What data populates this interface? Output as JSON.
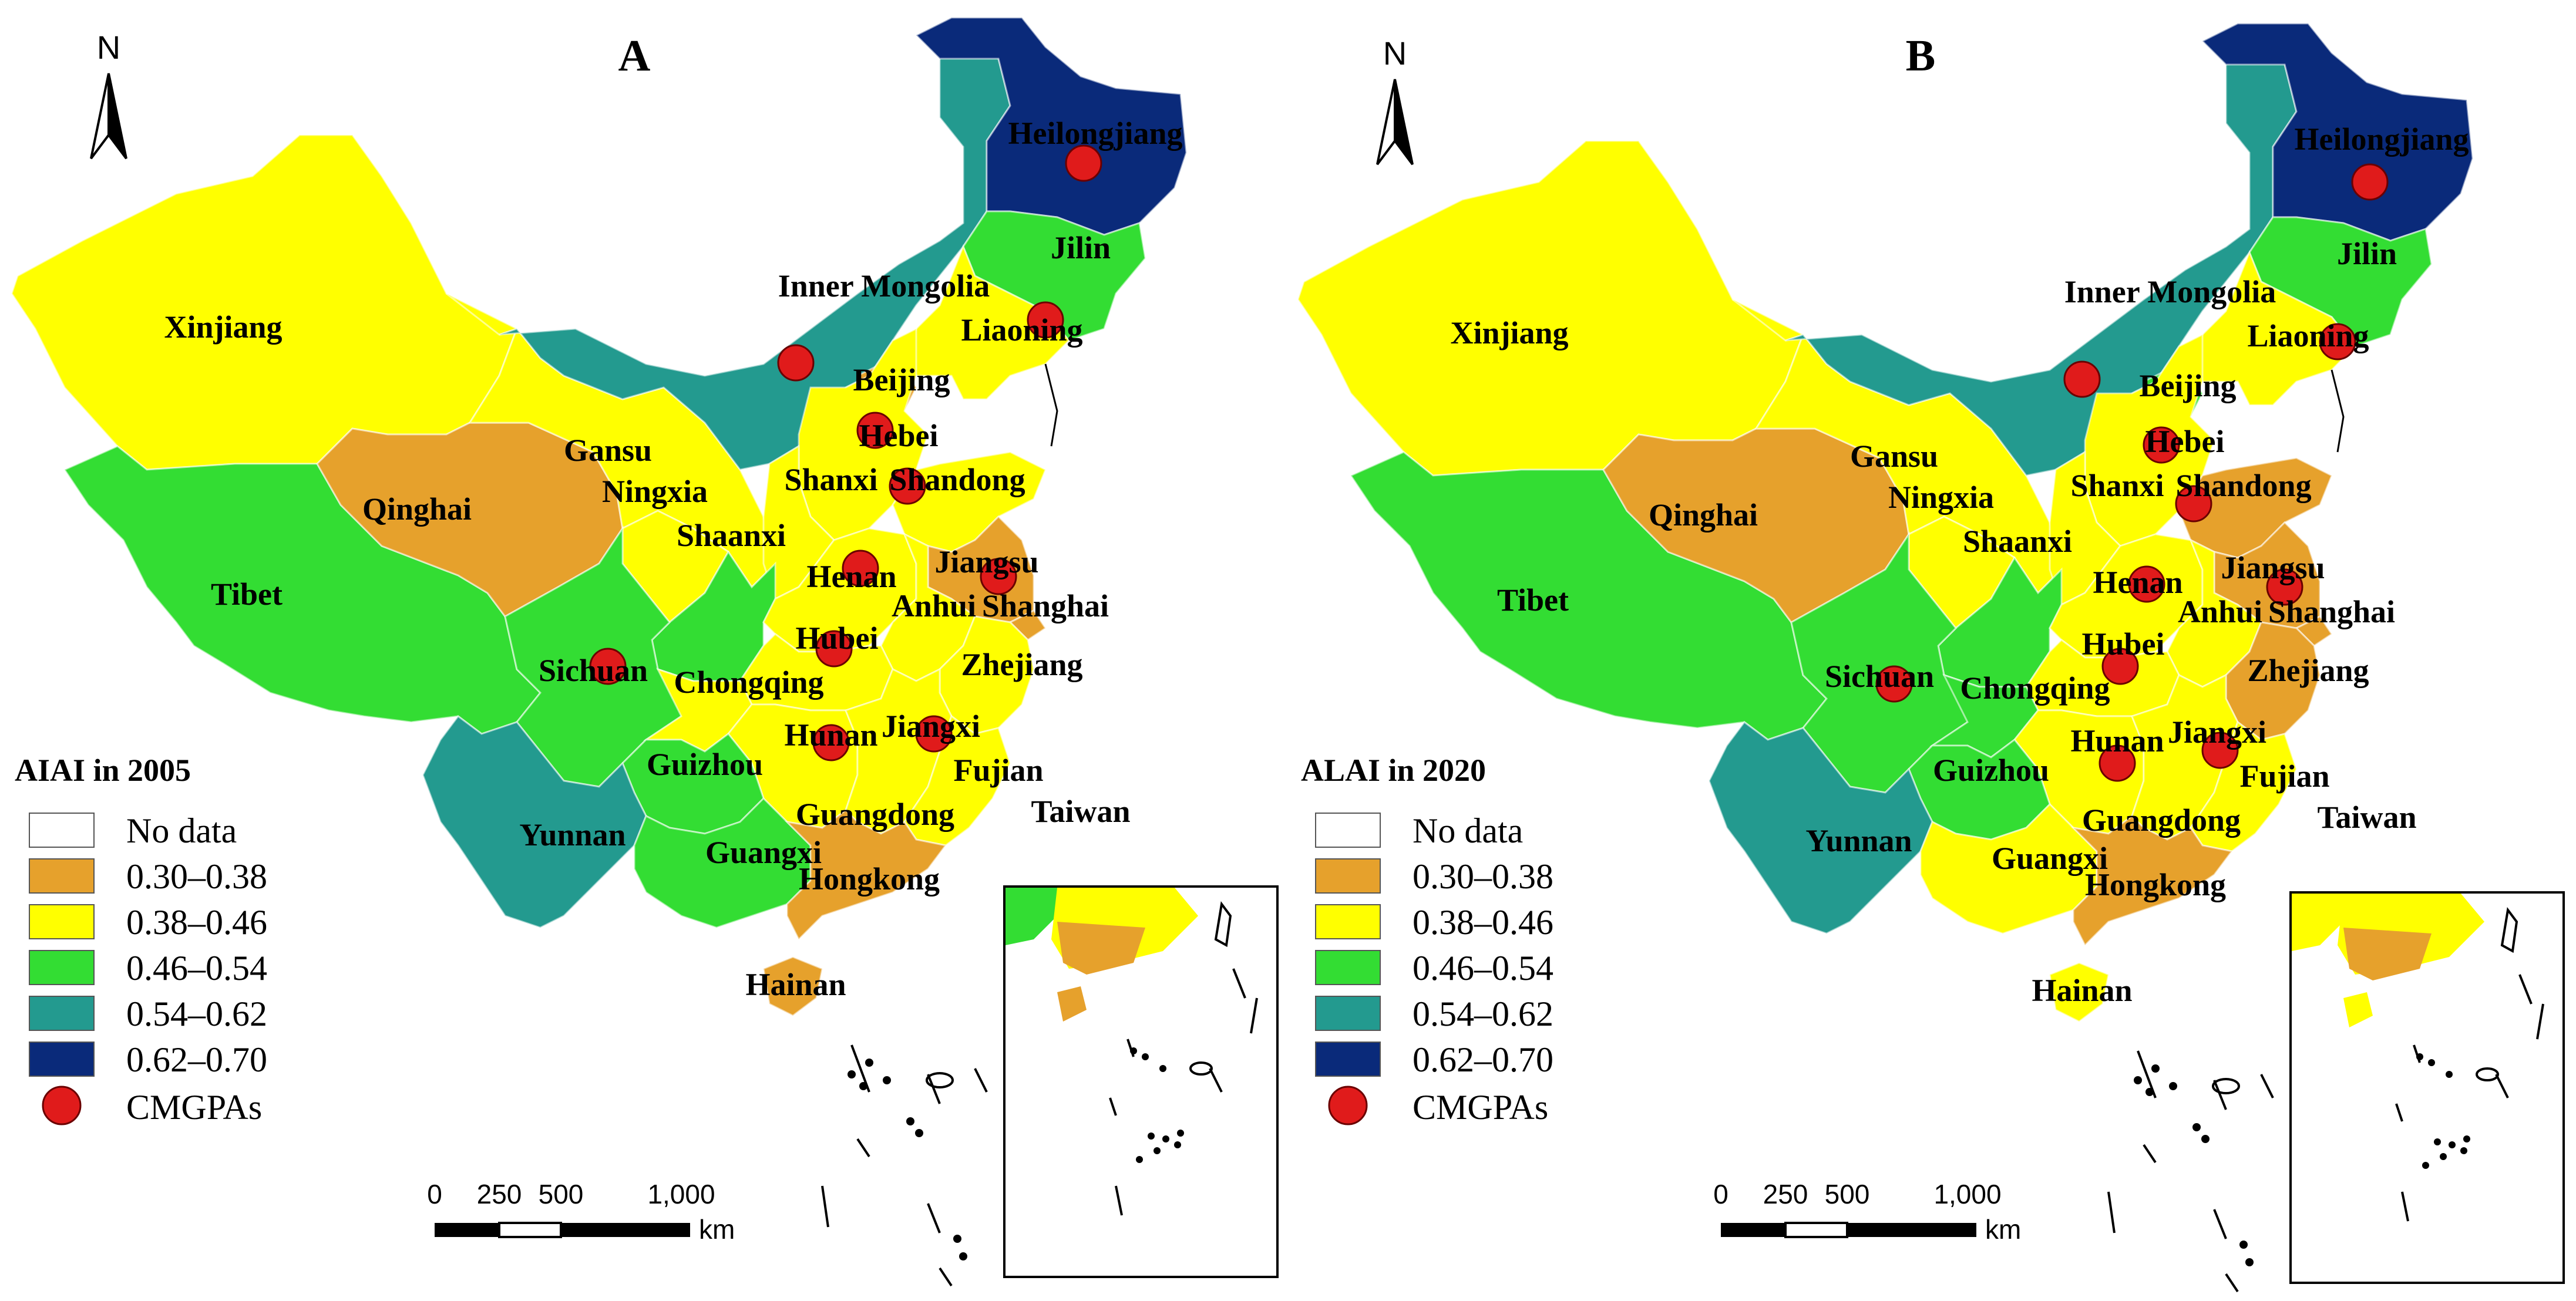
{
  "colors": {
    "no_data": "#ffffff",
    "c1": "#e6a12c",
    "c2": "#ffff00",
    "c3": "#33dd33",
    "c4": "#239a8f",
    "c5": "#0a2a7a",
    "marker": "#e01b1b"
  },
  "panels": [
    {
      "letter": "A",
      "legend_title": "AIAI in 2005",
      "legend": {
        "no_data": "No data",
        "c1": "0.30–0.38",
        "c2": "0.38–0.46",
        "c3": "0.46–0.54",
        "c4": "0.54–0.62",
        "c5": "0.62–0.70",
        "marker": "CMGPAs"
      },
      "north": "N",
      "scale": {
        "t0": "0",
        "t1": "250",
        "t2": "500",
        "t3": "1,000",
        "unit": "km"
      },
      "regions": {
        "xinjiang": "c2",
        "tibet": "c3",
        "qinghai": "c1",
        "gansu": "c2",
        "inner_mongolia": "c4",
        "heilongjiang": "c5",
        "jilin": "c3",
        "liaoning": "c2",
        "beijing": "c1",
        "hebei": "c2",
        "shandong": "c2",
        "shanxi": "c2",
        "ningxia": "c2",
        "shaanxi": "c3",
        "henan": "c2",
        "jiangsu": "c1",
        "anhui": "c2",
        "shanghai": "c1",
        "hubei": "c2",
        "zhejiang": "c2",
        "sichuan": "c3",
        "chongqing": "c2",
        "hunan": "c2",
        "jiangxi": "c2",
        "fujian": "c2",
        "guizhou": "c3",
        "yunnan": "c4",
        "guangxi": "c3",
        "guangdong": "c1",
        "hainan": "c1",
        "taiwan": "no_data"
      },
      "labels": {
        "xinjiang": "Xinjiang",
        "tibet": "Tibet",
        "qinghai": "Qinghai",
        "gansu": "Gansu",
        "inner_mongolia": "Inner Mongolia",
        "heilongjiang": "Heilongjiang",
        "jilin": "Jilin",
        "liaoning": "Liaoning",
        "beijing": "Beijing",
        "hebei": "Hebei",
        "shandong": "Shandong",
        "shanxi": "Shanxi",
        "ningxia": "Ningxia",
        "shaanxi": "Shaanxi",
        "henan": "Henan",
        "jiangsu": "Jiangsu",
        "anhui": "Anhui",
        "shanghai": "Shanghai",
        "hubei": "Hubei",
        "zhejiang": "Zhejiang",
        "sichuan": "Sichuan",
        "chongqing": "Chongqing",
        "hunan": "Hunan",
        "jiangxi": "Jiangxi",
        "fujian": "Fujian",
        "guizhou": "Guizhou",
        "yunnan": "Yunnan",
        "guangxi": "Guangxi",
        "guangdong": "Guangdong",
        "hongkong": "Hongkong",
        "hainan": "Hainan",
        "taiwan": "Taiwan"
      }
    },
    {
      "letter": "B",
      "legend_title": "ALAI in 2020",
      "legend": {
        "no_data": "No data",
        "c1": "0.30–0.38",
        "c2": "0.38–0.46",
        "c3": "0.46–0.54",
        "c4": "0.54–0.62",
        "c5": "0.62–0.70",
        "marker": "CMGPAs"
      },
      "north": "N",
      "scale": {
        "t0": "0",
        "t1": "250",
        "t2": "500",
        "t3": "1,000",
        "unit": "km"
      },
      "regions": {
        "xinjiang": "c2",
        "tibet": "c3",
        "qinghai": "c1",
        "gansu": "c2",
        "inner_mongolia": "c4",
        "heilongjiang": "c5",
        "jilin": "c3",
        "liaoning": "c2",
        "beijing": "c3",
        "hebei": "c2",
        "shandong": "c1",
        "shanxi": "c2",
        "ningxia": "c2",
        "shaanxi": "c3",
        "henan": "c2",
        "jiangsu": "c1",
        "anhui": "c2",
        "shanghai": "c1",
        "hubei": "c2",
        "zhejiang": "c1",
        "sichuan": "c3",
        "chongqing": "c3",
        "hunan": "c2",
        "jiangxi": "c2",
        "fujian": "c2",
        "guizhou": "c3",
        "yunnan": "c4",
        "guangxi": "c2",
        "guangdong": "c1",
        "hainan": "c2",
        "taiwan": "no_data"
      },
      "labels": {
        "xinjiang": "Xinjiang",
        "tibet": "Tibet",
        "qinghai": "Qinghai",
        "gansu": "Gansu",
        "inner_mongolia": "Inner Mongolia",
        "heilongjiang": "Heilongjiang",
        "jilin": "Jilin",
        "liaoning": "Liaoning",
        "beijing": "Beijing",
        "hebei": "Hebei",
        "shandong": "Shandong",
        "shanxi": "Shanxi",
        "ningxia": "Ningxia",
        "shaanxi": "Shaanxi",
        "henan": "Henan",
        "jiangsu": "Jiangsu",
        "anhui": "Anhui",
        "shanghai": "Shanghai",
        "hubei": "Hubei",
        "zhejiang": "Zhejiang",
        "sichuan": "Sichuan",
        "chongqing": "Chongqing",
        "hunan": "Hunan",
        "jiangxi": "Jiangxi",
        "fujian": "Fujian",
        "guizhou": "Guizhou",
        "yunnan": "Yunnan",
        "guangxi": "Guangxi",
        "guangdong": "Guangdong",
        "hongkong": "Hongkong",
        "hainan": "Hainan",
        "taiwan": "Taiwan"
      }
    }
  ]
}
